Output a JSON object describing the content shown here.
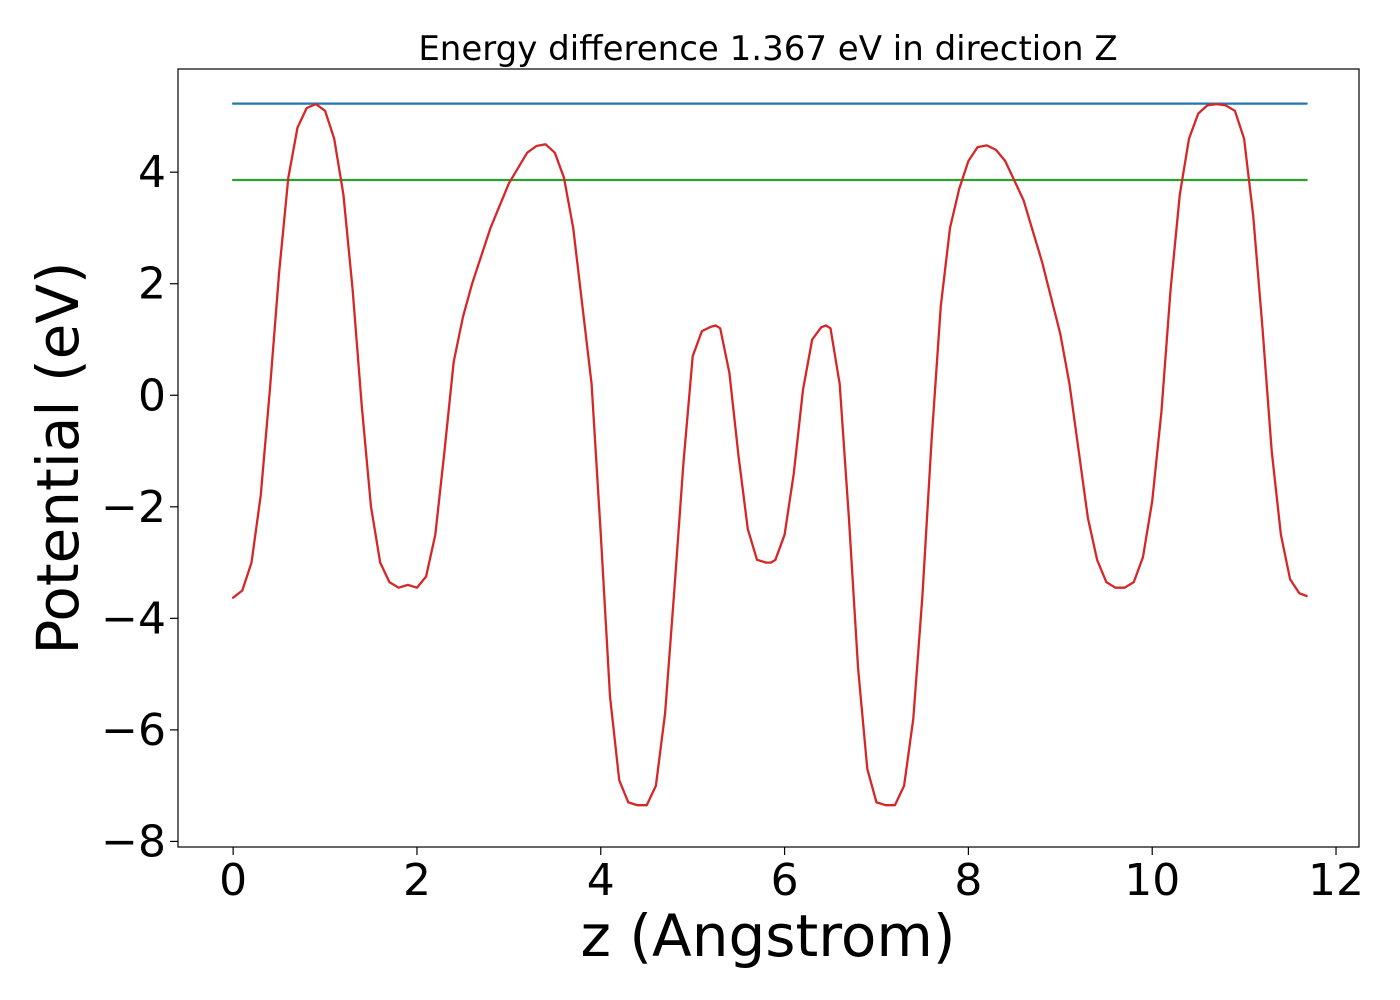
{
  "chart_data": {
    "type": "line",
    "title": "Energy difference 1.367 eV in direction Z",
    "xlabel": "z (Angstrom)",
    "ylabel": "Potential (eV)",
    "xlim": [
      -0.6,
      12.25
    ],
    "ylim": [
      -8.1,
      5.85
    ],
    "xticks": [
      0,
      2,
      4,
      6,
      8,
      10,
      12
    ],
    "xtick_labels": [
      "0",
      "2",
      "4",
      "6",
      "8",
      "10",
      "12"
    ],
    "yticks": [
      -8,
      -6,
      -4,
      -2,
      0,
      2,
      4
    ],
    "ytick_labels": [
      "−8",
      "−6",
      "−4",
      "−2",
      "0",
      "2",
      "4"
    ],
    "grid": false,
    "series": [
      {
        "color": "#1f77b4",
        "x": [
          0,
          11.68
        ],
        "y": [
          5.23,
          5.23
        ]
      },
      {
        "color": "#2ca02c",
        "x": [
          0,
          11.68
        ],
        "y": [
          3.86,
          3.86
        ]
      },
      {
        "color": "#d62728",
        "x": [
          0.0,
          0.1,
          0.2,
          0.3,
          0.4,
          0.5,
          0.6,
          0.7,
          0.8,
          0.9,
          1.0,
          1.1,
          1.2,
          1.3,
          1.4,
          1.5,
          1.6,
          1.7,
          1.8,
          1.9,
          2.0,
          2.1,
          2.2,
          2.3,
          2.4,
          2.5,
          2.6,
          2.8,
          3.0,
          3.2,
          3.3,
          3.4,
          3.5,
          3.6,
          3.7,
          3.8,
          3.9,
          4.0,
          4.1,
          4.2,
          4.3,
          4.4,
          4.5,
          4.6,
          4.7,
          4.8,
          4.9,
          5.0,
          5.1,
          5.2,
          5.25,
          5.3,
          5.4,
          5.5,
          5.6,
          5.7,
          5.8,
          5.85,
          5.9,
          6.0,
          6.1,
          6.2,
          6.3,
          6.4,
          6.45,
          6.5,
          6.6,
          6.7,
          6.8,
          6.9,
          7.0,
          7.1,
          7.2,
          7.3,
          7.4,
          7.5,
          7.6,
          7.7,
          7.8,
          7.9,
          8.0,
          8.1,
          8.2,
          8.3,
          8.4,
          8.6,
          8.8,
          9.0,
          9.1,
          9.2,
          9.3,
          9.4,
          9.5,
          9.6,
          9.7,
          9.8,
          9.9,
          10.0,
          10.1,
          10.2,
          10.3,
          10.4,
          10.5,
          10.6,
          10.7,
          10.8,
          10.9,
          11.0,
          11.1,
          11.2,
          11.3,
          11.4,
          11.5,
          11.6,
          11.68
        ],
        "y": [
          -3.63,
          -3.5,
          -3.0,
          -1.8,
          0.1,
          2.2,
          3.9,
          4.8,
          5.15,
          5.22,
          5.1,
          4.6,
          3.6,
          1.9,
          -0.2,
          -2.0,
          -3.0,
          -3.35,
          -3.45,
          -3.4,
          -3.45,
          -3.25,
          -2.5,
          -1.0,
          0.6,
          1.4,
          2.0,
          3.0,
          3.8,
          4.35,
          4.47,
          4.5,
          4.35,
          3.9,
          3.0,
          1.6,
          0.2,
          -2.5,
          -5.4,
          -6.9,
          -7.3,
          -7.35,
          -7.35,
          -7.0,
          -5.7,
          -3.5,
          -1.2,
          0.7,
          1.15,
          1.23,
          1.25,
          1.2,
          0.4,
          -1.1,
          -2.4,
          -2.95,
          -3.0,
          -3.0,
          -2.95,
          -2.5,
          -1.4,
          0.1,
          1.0,
          1.22,
          1.25,
          1.2,
          0.2,
          -2.2,
          -4.9,
          -6.7,
          -7.3,
          -7.35,
          -7.35,
          -7.0,
          -5.8,
          -3.6,
          -0.8,
          1.6,
          3.0,
          3.7,
          4.2,
          4.45,
          4.48,
          4.4,
          4.2,
          3.5,
          2.4,
          1.1,
          0.2,
          -1.0,
          -2.2,
          -2.95,
          -3.35,
          -3.45,
          -3.45,
          -3.35,
          -2.9,
          -1.9,
          -0.3,
          1.9,
          3.6,
          4.6,
          5.05,
          5.2,
          5.22,
          5.2,
          5.1,
          4.6,
          3.2,
          1.2,
          -1.0,
          -2.5,
          -3.3,
          -3.55,
          -3.6
        ]
      }
    ]
  }
}
